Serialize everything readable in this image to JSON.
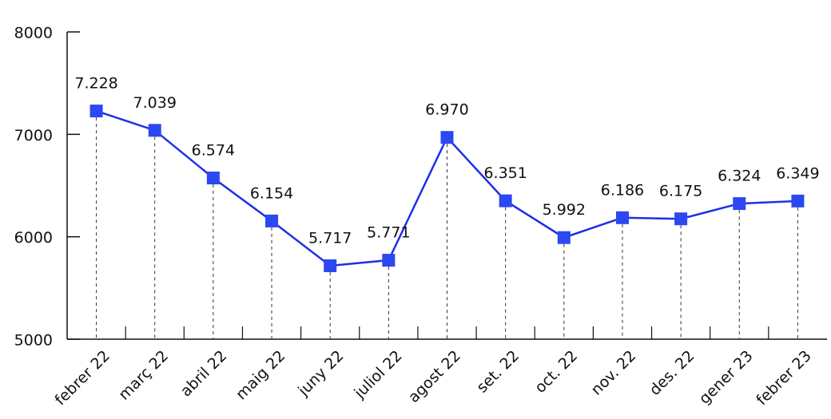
{
  "chart_data": {
    "type": "line",
    "categories": [
      "febrer 22",
      "març 22",
      "abril 22",
      "maig 22",
      "juny 22",
      "juliol 22",
      "agost 22",
      "set. 22",
      "oct. 22",
      "nov. 22",
      "des. 22",
      "gener 23",
      "febrer 23"
    ],
    "values": [
      7228,
      7039,
      6574,
      6154,
      5717,
      5771,
      6970,
      6351,
      5992,
      6186,
      6175,
      6324,
      6349
    ],
    "value_labels": [
      "7.228",
      "7.039",
      "6.574",
      "6.154",
      "5.717",
      "5.771",
      "6.970",
      "6.351",
      "5.992",
      "6.186",
      "6.175",
      "6.324",
      "6.349"
    ],
    "color": "#1f2fe6",
    "ylim": [
      5000,
      8000
    ],
    "yticks": [
      5000,
      6000,
      7000,
      8000
    ],
    "grid": false
  }
}
